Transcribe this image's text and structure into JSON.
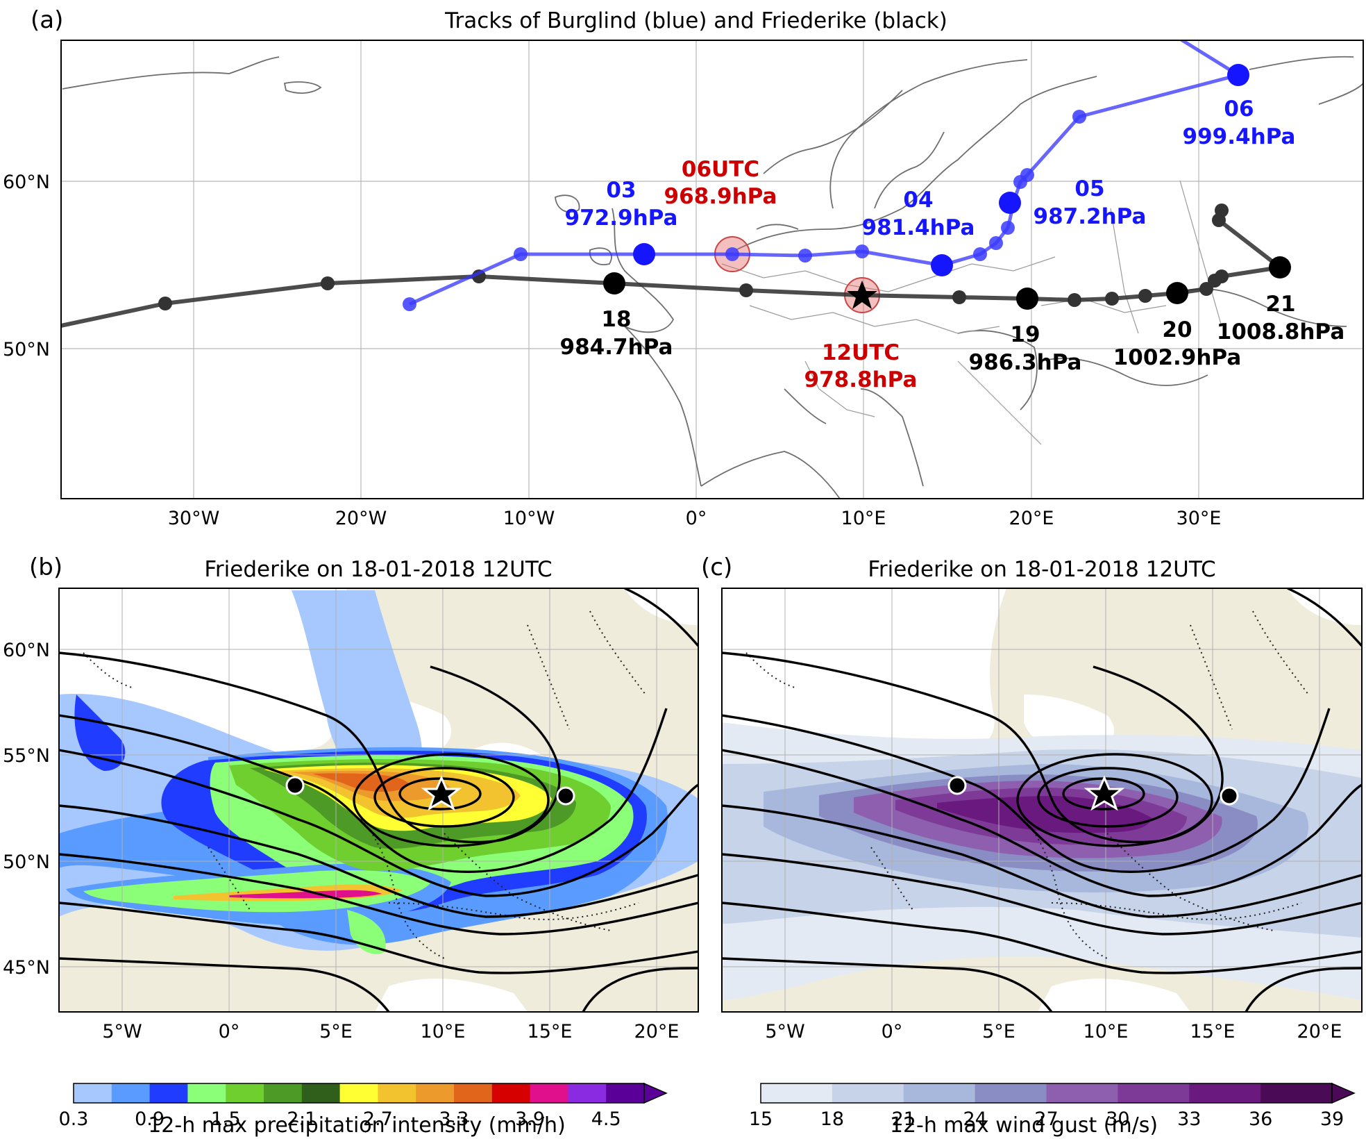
{
  "panel_a": {
    "label": "(a)",
    "title": "Tracks of Burglind (blue) and Friederike (black)",
    "lat_ticks": [
      "60°N",
      "50°N"
    ],
    "lon_ticks": [
      "30°W",
      "20°W",
      "10°W",
      "0°",
      "10°E",
      "20°E",
      "30°E"
    ],
    "burglind_color": "#1a1aff",
    "friederike_color": "#222222",
    "highlight_color": "#cc0000",
    "labels": {
      "b03_time": "03",
      "b03_p": "972.9hPa",
      "b04_time": "04",
      "b04_p": "981.4hPa",
      "b05_time": "05",
      "b05_p": "987.2hPa",
      "b06_time": "06",
      "b06_p": "999.4hPa",
      "f18_time": "18",
      "f18_p": "984.7hPa",
      "f19_time": "19",
      "f19_p": "986.3hPa",
      "f20_time": "20",
      "f20_p": "1002.9hPa",
      "f21_time": "21",
      "f21_p": "1008.8hPa",
      "h06_time": "06UTC",
      "h06_p": "968.9hPa",
      "h12_time": "12UTC",
      "h12_p": "978.8hPa"
    }
  },
  "panel_b": {
    "label": "(b)",
    "title": "Friederike on 18-01-2018 12UTC",
    "lat_ticks": [
      "60°N",
      "55°N",
      "50°N",
      "45°N"
    ],
    "lon_ticks": [
      "5°W",
      "0°",
      "5°E",
      "10°E",
      "15°E",
      "20°E"
    ],
    "colorbar": {
      "label": "12-h max precipitation intensity (mm/h)",
      "ticks": [
        "0.3",
        "0.9",
        "1.5",
        "2.1",
        "2.7",
        "3.3",
        "3.9",
        "4.5"
      ],
      "colors": [
        "#a6c8ff",
        "#5a9bff",
        "#1f3cff",
        "#8cff78",
        "#6fcf2f",
        "#4e9a26",
        "#2f5f1a",
        "#ffff33",
        "#f2c32e",
        "#ec9a2c",
        "#e2651c",
        "#d60000",
        "#e0108c",
        "#8a2be2",
        "#5a0099"
      ]
    }
  },
  "panel_c": {
    "label": "(c)",
    "title": "Friederike on 18-01-2018 12UTC",
    "lon_ticks": [
      "5°W",
      "0°",
      "5°E",
      "10°E",
      "15°E",
      "20°E"
    ],
    "colorbar": {
      "label": "12-h max wind gust (m/s)",
      "ticks": [
        "15",
        "18",
        "21",
        "24",
        "27",
        "30",
        "33",
        "36",
        "39"
      ],
      "colors": [
        "#e4eaf4",
        "#c7d3e8",
        "#a8b8dc",
        "#8a8cc4",
        "#8e5fae",
        "#7d3a97",
        "#6a1a7e",
        "#4a0a55"
      ]
    }
  }
}
